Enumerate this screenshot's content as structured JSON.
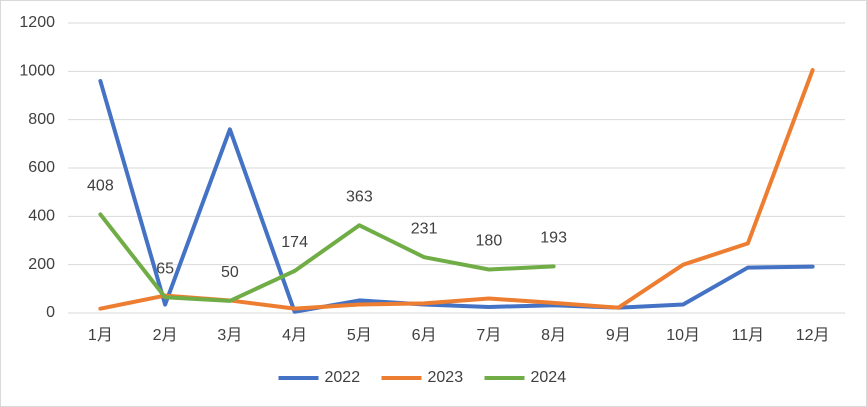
{
  "chart_data": {
    "type": "line",
    "categories": [
      "1月",
      "2月",
      "3月",
      "4月",
      "5月",
      "6月",
      "7月",
      "8月",
      "9月",
      "10月",
      "11月",
      "12月"
    ],
    "series": [
      {
        "name": "2022",
        "color": "#4472c4",
        "values": [
          960,
          35,
          760,
          5,
          52,
          35,
          25,
          32,
          22,
          35,
          188,
          192
        ]
      },
      {
        "name": "2023",
        "color": "#ed7d31",
        "values": [
          18,
          72,
          52,
          18,
          35,
          40,
          60,
          42,
          22,
          200,
          288,
          1005
        ]
      },
      {
        "name": "2024",
        "color": "#70ad47",
        "values": [
          408,
          65,
          50,
          174,
          363,
          231,
          180,
          193,
          null,
          null,
          null,
          null
        ],
        "show_labels": true
      }
    ],
    "ylim": [
      0,
      1200
    ],
    "yticks": [
      0,
      200,
      400,
      600,
      800,
      1000,
      1200
    ],
    "grid": true,
    "legend": "bottom"
  }
}
